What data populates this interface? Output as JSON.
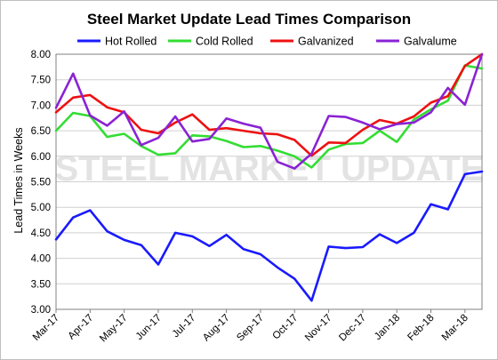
{
  "chart_data": {
    "type": "line",
    "title": "Steel Market Update Lead Times Comparison",
    "xlabel": "",
    "ylabel": "Lead Times in Weeks",
    "ylim": [
      3.0,
      8.0
    ],
    "yticks": [
      "3.00",
      "3.50",
      "4.00",
      "4.50",
      "5.00",
      "5.50",
      "6.00",
      "6.50",
      "7.00",
      "7.50",
      "8.00"
    ],
    "xticks": [
      "Mar-17",
      "Apr-17",
      "May-17",
      "Jun-17",
      "Jul-17",
      "Aug-17",
      "Sep-17",
      "Oct-17",
      "Nov-17",
      "Dec-17",
      "Jan-18",
      "Feb-18",
      "Mar-18"
    ],
    "grid": "horizontal",
    "legend": "top",
    "watermark": "STEEL MARKET UPDATE",
    "series": [
      {
        "name": "Hot Rolled",
        "color": "#1a1aff",
        "values": [
          4.37,
          4.8,
          4.94,
          4.53,
          4.36,
          4.26,
          3.88,
          4.5,
          4.43,
          4.24,
          4.46,
          4.18,
          4.08,
          3.82,
          3.6,
          3.17,
          4.23,
          4.2,
          4.22,
          4.47,
          4.3,
          4.5,
          5.06,
          4.96,
          5.65,
          5.7
        ]
      },
      {
        "name": "Cold Rolled",
        "color": "#33dd33",
        "values": [
          6.5,
          6.85,
          6.79,
          6.38,
          6.44,
          6.2,
          6.03,
          6.06,
          6.41,
          6.39,
          6.3,
          6.18,
          6.2,
          6.11,
          6.0,
          5.78,
          6.13,
          6.24,
          6.26,
          6.5,
          6.28,
          6.72,
          6.92,
          7.09,
          7.78,
          7.72
        ]
      },
      {
        "name": "Galvanized",
        "color": "#ee1111",
        "values": [
          6.86,
          7.15,
          7.2,
          6.96,
          6.86,
          6.52,
          6.45,
          6.66,
          6.82,
          6.52,
          6.55,
          6.5,
          6.45,
          6.43,
          6.32,
          6.01,
          6.27,
          6.26,
          6.52,
          6.71,
          6.64,
          6.78,
          7.05,
          7.18,
          7.77,
          8.0
        ]
      },
      {
        "name": "Galvalume",
        "color": "#8a22d4",
        "values": [
          6.95,
          7.62,
          6.8,
          6.6,
          6.88,
          6.22,
          6.36,
          6.78,
          6.29,
          6.34,
          6.74,
          6.64,
          6.56,
          5.89,
          5.76,
          6.05,
          6.79,
          6.77,
          6.66,
          6.53,
          6.63,
          6.66,
          6.86,
          7.34,
          7.01,
          8.05
        ]
      }
    ]
  }
}
